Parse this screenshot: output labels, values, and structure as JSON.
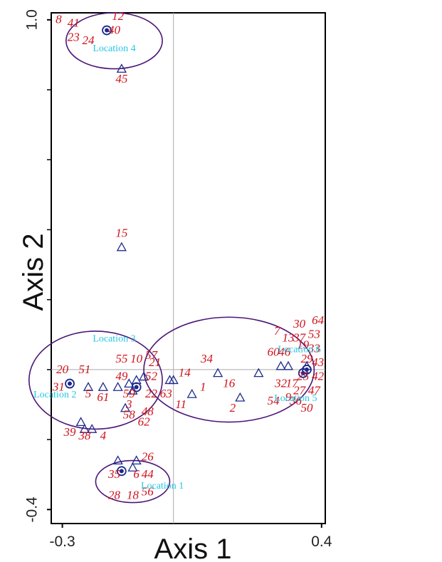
{
  "chart_data": {
    "type": "scatter",
    "xlabel": "Axis 1",
    "ylabel": "Axis 2",
    "xlim": [
      -0.33,
      0.41
    ],
    "ylim": [
      -0.44,
      1.02
    ],
    "x_ticks": [
      {
        "value": -0.3,
        "label": "-0.3"
      },
      {
        "value": 0.4,
        "label": "0.4"
      }
    ],
    "y_ticks": [
      {
        "value": 1.0,
        "label": "1.0"
      },
      {
        "value": -0.4,
        "label": "-0.4"
      }
    ],
    "y_minor_ticks": [
      0.8,
      0.6,
      0.4,
      0.2,
      0.0,
      -0.2
    ],
    "origin_lines": {
      "x": 0.0,
      "y": 0.0
    },
    "locations": [
      {
        "label": "Location 1",
        "center": [
          -0.11,
          -0.32
        ],
        "radii": [
          0.1,
          0.06
        ],
        "label_at": [
          -0.03,
          -0.34
        ]
      },
      {
        "label": "Location 2",
        "center": [
          -0.21,
          -0.03
        ],
        "radii": [
          0.18,
          0.14
        ],
        "label_at": [
          -0.32,
          -0.08
        ]
      },
      {
        "label": "Location 3",
        "center": [
          -0.07,
          0.07
        ],
        "label_at": [
          -0.16,
          0.08
        ]
      },
      {
        "label": "Location 4",
        "center": [
          -0.16,
          0.94
        ],
        "radii": [
          0.13,
          0.08
        ],
        "label_at": [
          -0.16,
          0.91
        ]
      },
      {
        "label": "Location 5",
        "center": [
          0.3,
          -0.06
        ],
        "label_at": [
          0.33,
          -0.09
        ]
      },
      {
        "label": "Location 6",
        "center": [
          0.15,
          0.0
        ],
        "radii": [
          0.23,
          0.15
        ],
        "label_at": [
          0.34,
          0.05
        ]
      }
    ],
    "triangle_markers": [
      [
        -0.14,
        0.86
      ],
      [
        -0.14,
        0.35
      ],
      [
        -0.19,
        -0.05
      ],
      [
        -0.15,
        -0.05
      ],
      [
        -0.12,
        -0.04
      ],
      [
        -0.1,
        -0.03
      ],
      [
        -0.08,
        -0.02
      ],
      [
        -0.01,
        -0.03
      ],
      [
        0.0,
        -0.03
      ],
      [
        0.05,
        -0.07
      ],
      [
        0.12,
        -0.01
      ],
      [
        0.18,
        -0.08
      ],
      [
        0.23,
        -0.01
      ],
      [
        0.29,
        0.01
      ],
      [
        0.31,
        0.01
      ],
      [
        0.36,
        0.01
      ],
      [
        -0.25,
        -0.15
      ],
      [
        -0.24,
        -0.17
      ],
      [
        -0.22,
        -0.17
      ],
      [
        -0.15,
        -0.26
      ],
      [
        -0.1,
        -0.26
      ],
      [
        -0.11,
        -0.28
      ],
      [
        -0.23,
        -0.05
      ],
      [
        -0.11,
        -0.06
      ],
      [
        -0.13,
        -0.11
      ]
    ],
    "circle_markers": [
      [
        -0.18,
        0.97
      ],
      [
        -0.28,
        -0.04
      ],
      [
        -0.1,
        -0.05
      ],
      [
        0.35,
        -0.01
      ],
      [
        0.36,
        0.0
      ],
      [
        -0.14,
        -0.29
      ]
    ],
    "labels": [
      {
        "text": "8",
        "x": -0.31,
        "y": 0.99
      },
      {
        "text": "41",
        "x": -0.27,
        "y": 0.98
      },
      {
        "text": "12",
        "x": -0.15,
        "y": 1.0
      },
      {
        "text": "40",
        "x": -0.16,
        "y": 0.96
      },
      {
        "text": "23",
        "x": -0.27,
        "y": 0.94
      },
      {
        "text": "24",
        "x": -0.23,
        "y": 0.93
      },
      {
        "text": "45",
        "x": -0.14,
        "y": 0.82
      },
      {
        "text": "15",
        "x": -0.14,
        "y": 0.38
      },
      {
        "text": "20",
        "x": -0.3,
        "y": -0.01
      },
      {
        "text": "51",
        "x": -0.24,
        "y": -0.01
      },
      {
        "text": "31",
        "x": -0.31,
        "y": -0.06
      },
      {
        "text": "55",
        "x": -0.14,
        "y": 0.02
      },
      {
        "text": "10",
        "x": -0.1,
        "y": 0.02
      },
      {
        "text": "57",
        "x": -0.06,
        "y": 0.03
      },
      {
        "text": "21",
        "x": -0.05,
        "y": 0.01
      },
      {
        "text": "14",
        "x": 0.03,
        "y": -0.02
      },
      {
        "text": "34",
        "x": 0.09,
        "y": 0.02
      },
      {
        "text": "49",
        "x": -0.14,
        "y": -0.03
      },
      {
        "text": "52",
        "x": -0.06,
        "y": -0.03
      },
      {
        "text": "1",
        "x": 0.08,
        "y": -0.06
      },
      {
        "text": "16",
        "x": 0.15,
        "y": -0.05
      },
      {
        "text": "5",
        "x": -0.23,
        "y": -0.08
      },
      {
        "text": "61",
        "x": -0.19,
        "y": -0.09
      },
      {
        "text": "59",
        "x": -0.12,
        "y": -0.08
      },
      {
        "text": "22",
        "x": -0.06,
        "y": -0.08
      },
      {
        "text": "63",
        "x": -0.02,
        "y": -0.08
      },
      {
        "text": "3",
        "x": -0.12,
        "y": -0.11
      },
      {
        "text": "11",
        "x": 0.02,
        "y": -0.11
      },
      {
        "text": "48",
        "x": -0.07,
        "y": -0.13
      },
      {
        "text": "58",
        "x": -0.12,
        "y": -0.14
      },
      {
        "text": "62",
        "x": -0.08,
        "y": -0.16
      },
      {
        "text": "39",
        "x": -0.28,
        "y": -0.19
      },
      {
        "text": "38",
        "x": -0.24,
        "y": -0.2
      },
      {
        "text": "4",
        "x": -0.19,
        "y": -0.2
      },
      {
        "text": "2",
        "x": 0.16,
        "y": -0.12
      },
      {
        "text": "26",
        "x": -0.07,
        "y": -0.26
      },
      {
        "text": "35",
        "x": -0.16,
        "y": -0.31
      },
      {
        "text": "6",
        "x": -0.1,
        "y": -0.31
      },
      {
        "text": "44",
        "x": -0.07,
        "y": -0.31
      },
      {
        "text": "28",
        "x": -0.16,
        "y": -0.37
      },
      {
        "text": "18",
        "x": -0.11,
        "y": -0.37
      },
      {
        "text": "56",
        "x": -0.07,
        "y": -0.36
      },
      {
        "text": "30",
        "x": 0.34,
        "y": 0.12
      },
      {
        "text": "64",
        "x": 0.39,
        "y": 0.13
      },
      {
        "text": "7",
        "x": 0.28,
        "y": 0.1
      },
      {
        "text": "13",
        "x": 0.31,
        "y": 0.08
      },
      {
        "text": "37",
        "x": 0.34,
        "y": 0.08
      },
      {
        "text": "53",
        "x": 0.38,
        "y": 0.09
      },
      {
        "text": "19",
        "x": 0.35,
        "y": 0.06
      },
      {
        "text": "33",
        "x": 0.38,
        "y": 0.05
      },
      {
        "text": "60",
        "x": 0.27,
        "y": 0.04
      },
      {
        "text": "46",
        "x": 0.3,
        "y": 0.04
      },
      {
        "text": "29",
        "x": 0.36,
        "y": 0.02
      },
      {
        "text": "43",
        "x": 0.39,
        "y": 0.01
      },
      {
        "text": "42",
        "x": 0.39,
        "y": -0.03
      },
      {
        "text": "25",
        "x": 0.35,
        "y": -0.03
      },
      {
        "text": "32",
        "x": 0.29,
        "y": -0.05
      },
      {
        "text": "17",
        "x": 0.32,
        "y": -0.05
      },
      {
        "text": "27",
        "x": 0.34,
        "y": -0.07
      },
      {
        "text": "47",
        "x": 0.38,
        "y": -0.07
      },
      {
        "text": "54",
        "x": 0.27,
        "y": -0.1
      },
      {
        "text": "9",
        "x": 0.31,
        "y": -0.09
      },
      {
        "text": "36",
        "x": 0.33,
        "y": -0.1
      },
      {
        "text": "50",
        "x": 0.36,
        "y": -0.12
      }
    ]
  }
}
